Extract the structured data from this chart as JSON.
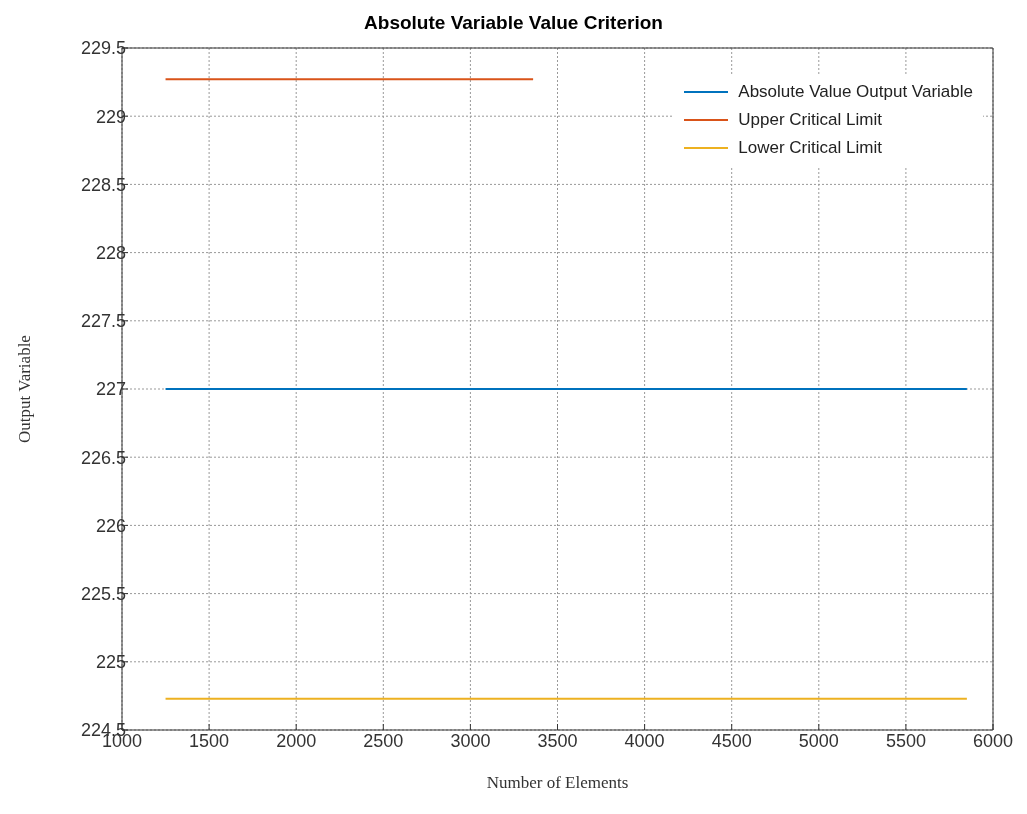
{
  "chart_data": {
    "type": "line",
    "title": "Absolute Variable Value Criterion",
    "xlabel": "Number of Elements",
    "ylabel": "Output Variable",
    "series": [
      {
        "name": "Absolute Value Output Variable",
        "color": "#0072bd",
        "x": [
          1250,
          5850
        ],
        "values": [
          227,
          227
        ]
      },
      {
        "name": "Upper Critical Limit",
        "color": "#d95319",
        "x": [
          1250,
          3360
        ],
        "values": [
          229.27,
          229.27
        ]
      },
      {
        "name": "Lower Critical Limit",
        "color": "#edb120",
        "x": [
          1250,
          5850
        ],
        "values": [
          224.73,
          224.73
        ]
      }
    ],
    "xlim": [
      1000,
      6000
    ],
    "xticks": [
      1000,
      1500,
      2000,
      2500,
      3000,
      3500,
      4000,
      4500,
      5000,
      5500,
      6000
    ],
    "ylim": [
      224.5,
      229.5
    ],
    "yticks": [
      224.5,
      225,
      225.5,
      226,
      226.5,
      227,
      227.5,
      228,
      228.5,
      229,
      229.5
    ],
    "grid": true,
    "legend": "top right",
    "marker": "none",
    "line_style": "solid"
  }
}
